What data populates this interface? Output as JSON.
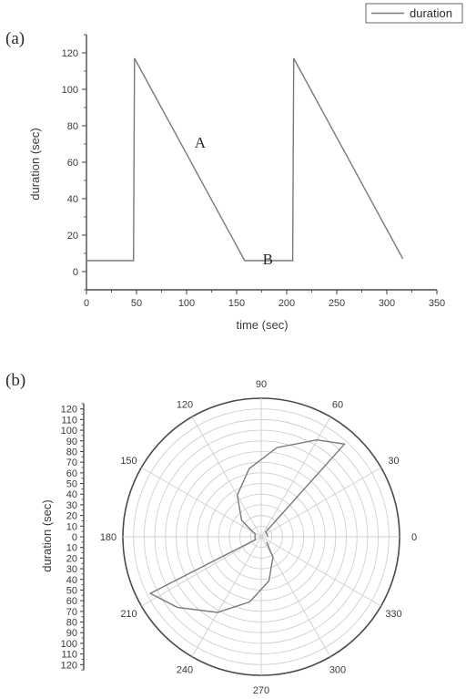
{
  "legend": {
    "label": "duration"
  },
  "chart_data": [
    {
      "type": "line",
      "panel_label": "(a)",
      "xlabel": "time (sec)",
      "ylabel": "duration (sec)",
      "xlim": [
        0,
        350
      ],
      "ylim": [
        -10,
        130
      ],
      "xticks": [
        0,
        50,
        100,
        150,
        200,
        250,
        300,
        350
      ],
      "yticks": [
        0,
        20,
        40,
        60,
        80,
        100,
        120
      ],
      "series": [
        {
          "name": "duration",
          "color": "#7a7a7a",
          "x": [
            0,
            47,
            48,
            158,
            206,
            207,
            316
          ],
          "y": [
            6,
            6,
            117,
            6,
            6,
            117,
            7
          ]
        }
      ],
      "annotations": [
        {
          "text": "A",
          "x": 108,
          "y": 68
        },
        {
          "text": "B",
          "x": 176,
          "y": 4
        }
      ]
    },
    {
      "type": "polar",
      "panel_label": "(b)",
      "ylabel": "duration (sec)",
      "r_max": 130,
      "r_ticks": [
        0,
        10,
        20,
        30,
        40,
        50,
        60,
        70,
        80,
        90,
        100,
        110,
        120
      ],
      "r_tick_labels": [
        "120",
        "110",
        "100",
        "90",
        "80",
        "70",
        "60",
        "50",
        "40",
        "30",
        "20",
        "10",
        "0",
        "10",
        "20",
        "30",
        "40",
        "50",
        "60",
        "70",
        "80",
        "90",
        "100",
        "110",
        "120"
      ],
      "r_tick_values": [
        120,
        110,
        100,
        90,
        80,
        70,
        60,
        50,
        40,
        30,
        20,
        10,
        0,
        -10,
        -20,
        -30,
        -40,
        -50,
        -60,
        -70,
        -80,
        -90,
        -100,
        -110,
        -120
      ],
      "angle_ticks": [
        0,
        30,
        60,
        90,
        120,
        150,
        180,
        210,
        240,
        270,
        300,
        330
      ],
      "angle_labels": [
        "0",
        "30",
        "60",
        "90",
        "120",
        "150",
        "180",
        "210",
        "240",
        "270",
        "300",
        "330"
      ],
      "rings": [
        10,
        20,
        30,
        40,
        50,
        60,
        70,
        80,
        90,
        100,
        110,
        120,
        130
      ],
      "series": [
        {
          "name": "duration",
          "color": "#7a7a7a",
          "theta": [
            0,
            20,
            40,
            47,
            48,
            60,
            80,
            100,
            120,
            140,
            158,
            180,
            200,
            206,
            207,
            220,
            240,
            260,
            280,
            300,
            316
          ],
          "r": [
            6,
            6,
            6,
            6,
            117,
            105,
            85,
            65,
            45,
            24,
            6,
            6,
            6,
            6,
            117,
            103,
            82,
            62,
            42,
            22,
            7
          ]
        }
      ]
    }
  ]
}
